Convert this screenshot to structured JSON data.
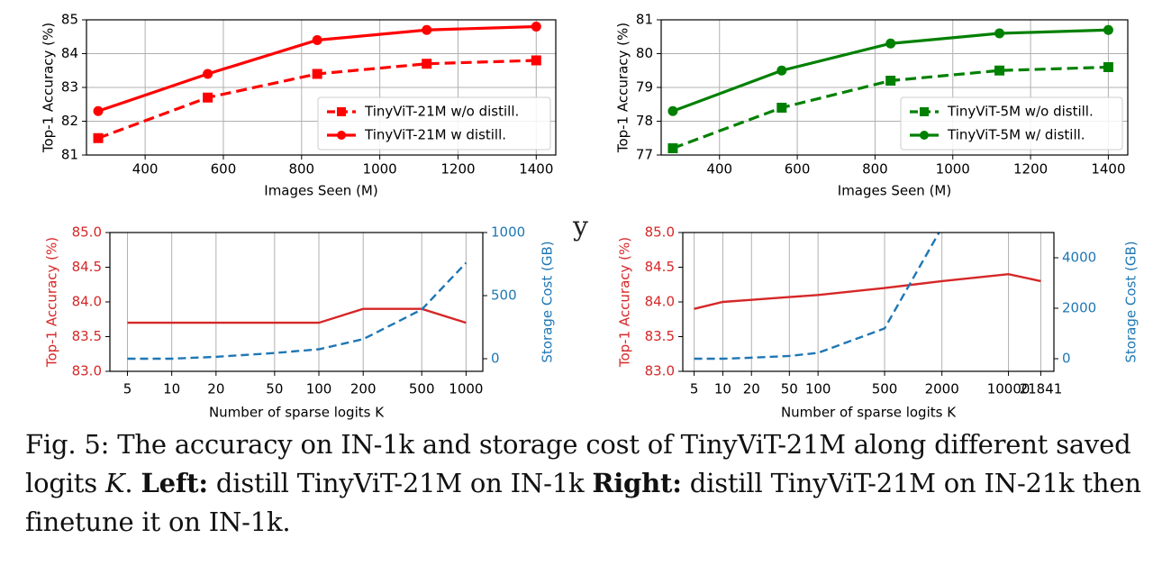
{
  "stray_glyph": "y",
  "caption": {
    "fig": "Fig. 5: The accuracy on IN-1k and storage cost of TinyViT-21M along different saved logits ",
    "k": "K",
    "dot": ". ",
    "left_label": "Left:",
    "left_text": " distill TinyViT-21M on IN-1k ",
    "right_label": "Right:",
    "right_text": " distill TinyViT-21M on IN-21k then finetune it on IN-1k."
  },
  "chart_data": [
    {
      "type": "line",
      "xlabel": "Images Seen (M)",
      "ylabel": "Top-1 Accuracy (%)",
      "xlim": [
        250,
        1450
      ],
      "ylim": [
        81,
        85
      ],
      "xticks": [
        400,
        600,
        800,
        1000,
        1200,
        1400
      ],
      "yticks": [
        81,
        82,
        83,
        84,
        85
      ],
      "grid": true,
      "legend": "lower-right",
      "x": [
        280,
        560,
        840,
        1120,
        1400
      ],
      "series": [
        {
          "name": "TinyViT-21M w/o distill.",
          "values": [
            81.5,
            82.7,
            83.4,
            83.7,
            83.8
          ],
          "color": "#ff0000",
          "dash": true,
          "marker": "square"
        },
        {
          "name": "TinyViT-21M w distill.",
          "values": [
            82.3,
            83.4,
            84.4,
            84.7,
            84.8
          ],
          "color": "#ff0000",
          "dash": false,
          "marker": "circle"
        }
      ]
    },
    {
      "type": "line",
      "xlabel": "Images Seen (M)",
      "ylabel": "Top-1 Accuracy (%)",
      "xlim": [
        250,
        1450
      ],
      "ylim": [
        77,
        81
      ],
      "xticks": [
        400,
        600,
        800,
        1000,
        1200,
        1400
      ],
      "yticks": [
        77,
        78,
        79,
        80,
        81
      ],
      "grid": true,
      "legend": "lower-right",
      "x": [
        280,
        560,
        840,
        1120,
        1400
      ],
      "series": [
        {
          "name": "TinyViT-5M w/o distill.",
          "values": [
            77.2,
            78.4,
            79.2,
            79.5,
            79.6
          ],
          "color": "#008000",
          "dash": true,
          "marker": "square"
        },
        {
          "name": "TinyViT-5M w/ distill.",
          "values": [
            78.3,
            79.5,
            80.3,
            80.6,
            80.7
          ],
          "color": "#008000",
          "dash": false,
          "marker": "circle"
        }
      ]
    },
    {
      "type": "line",
      "xlabel": "Number of sparse logits K",
      "ylabel": "Top-1 Accuracy (%)",
      "ylabel_right": "Storage Cost (GB)",
      "categories": [
        "5",
        "10",
        "20",
        "50",
        "100",
        "200",
        "500",
        "1000"
      ],
      "tick_x": [
        5,
        10,
        20,
        50,
        100,
        200,
        500,
        1000
      ],
      "xscale": "log",
      "xlim": [
        3.8,
        1300
      ],
      "ylim": [
        83.0,
        85.0
      ],
      "yticks": [
        "83.0",
        "83.5",
        "84.0",
        "84.5",
        "85.0"
      ],
      "ylim_right": [
        -100,
        1000
      ],
      "yticks_right": [
        "0",
        "500",
        "1000"
      ],
      "grid": true,
      "series": [
        {
          "axis": "left",
          "values": [
            83.7,
            83.7,
            83.7,
            83.7,
            83.7,
            83.9,
            83.9,
            83.7
          ],
          "color": "#d62728",
          "dash": false
        },
        {
          "axis": "right",
          "values": [
            0,
            0,
            15,
            45,
            75,
            155,
            390,
            760
          ],
          "color": "#1f77b4",
          "dash": true
        }
      ]
    },
    {
      "type": "line",
      "xlabel": "Number of sparse logits K",
      "ylabel": "Top-1 Accuracy (%)",
      "ylabel_right": "Storage Cost (GB)",
      "categories": [
        "5",
        "10",
        "20",
        "50",
        "100",
        "500",
        "2000",
        "10000",
        "21841"
      ],
      "tick_x": [
        5,
        10,
        20,
        50,
        100,
        500,
        2000,
        10000,
        21841
      ],
      "xscale": "log",
      "xlim": [
        3.8,
        30000
      ],
      "ylim": [
        83.0,
        85.0
      ],
      "yticks": [
        "83.0",
        "83.5",
        "84.0",
        "84.5",
        "85.0"
      ],
      "ylim_right": [
        -500,
        5000
      ],
      "yticks_right": [
        "0",
        "2000",
        "4000"
      ],
      "grid": true,
      "series": [
        {
          "axis": "left",
          "values": [
            83.9,
            84.0,
            84.03,
            84.07,
            84.1,
            84.2,
            84.3,
            84.4,
            84.3
          ],
          "color": "#d62728",
          "dash": false
        },
        {
          "axis": "right",
          "values": [
            0,
            0,
            40,
            110,
            230,
            1200,
            5200,
            null,
            null
          ],
          "color": "#1f77b4",
          "dash": true
        }
      ]
    }
  ]
}
